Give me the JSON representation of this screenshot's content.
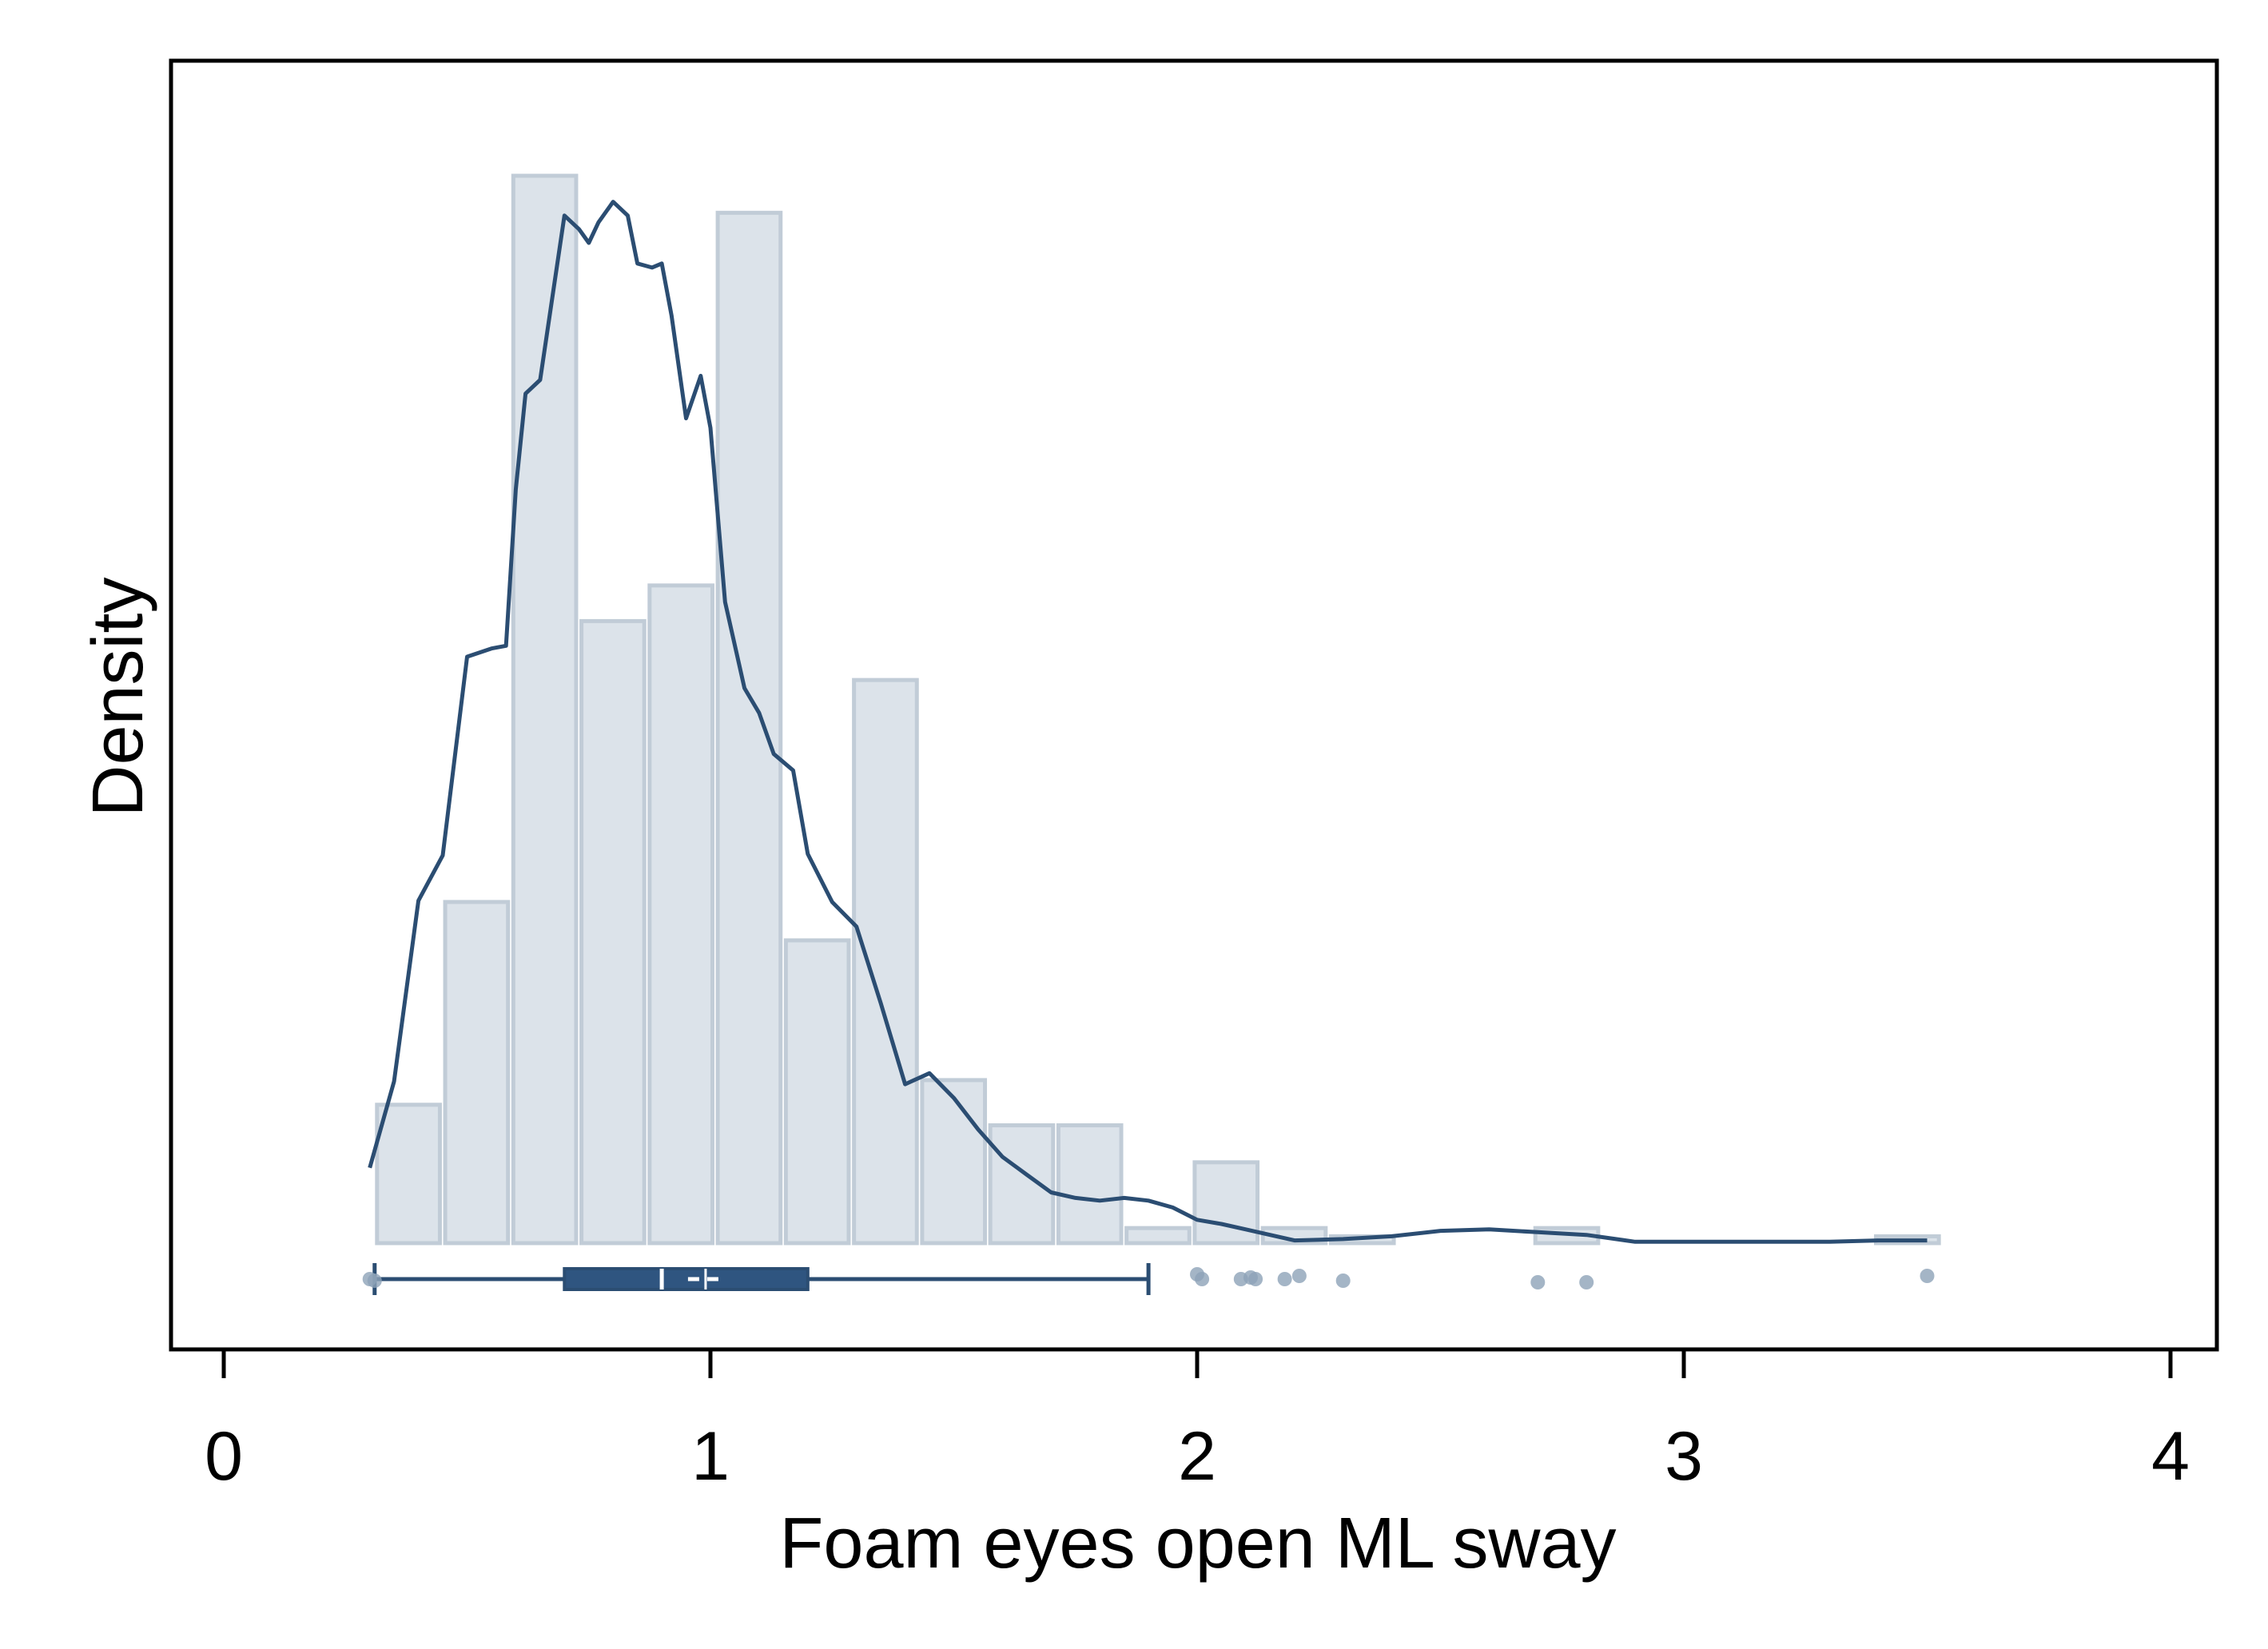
{
  "chart_data": {
    "type": "histogram",
    "title": "",
    "xlabel": "Foam eyes open ML sway",
    "ylabel": "Density",
    "xlim": [
      -0.1,
      4.1
    ],
    "xticks": [
      0,
      1,
      2,
      3,
      4
    ],
    "xtick_labels": [
      "0",
      "1",
      "2",
      "3",
      "4"
    ],
    "y_tick_labels_shown": false,
    "grid": false,
    "legend": "none",
    "bin_width": 0.139,
    "histogram": {
      "bin_starts": [
        0.31,
        0.45,
        0.59,
        0.73,
        0.87,
        1.01,
        1.15,
        1.29,
        1.43,
        1.57,
        1.71,
        1.85,
        1.99,
        2.13,
        2.27,
        2.41,
        2.55,
        2.69,
        2.83,
        2.97,
        3.11,
        3.25,
        3.39
      ],
      "heights": [
        0.101,
        0.249,
        0.779,
        0.454,
        0.48,
        0.752,
        0.221,
        0.411,
        0.119,
        0.086,
        0.086,
        0.011,
        0.059,
        0.011,
        0.005,
        0.0,
        0.0,
        0.011,
        0.0,
        0.0,
        0.0,
        0.0,
        0.005
      ]
    },
    "kde": {
      "x": [
        0.3,
        0.35,
        0.4,
        0.45,
        0.5,
        0.55,
        0.58,
        0.6,
        0.62,
        0.65,
        0.7,
        0.73,
        0.75,
        0.77,
        0.8,
        0.83,
        0.85,
        0.88,
        0.9,
        0.92,
        0.95,
        0.98,
        1.0,
        1.03,
        1.07,
        1.1,
        1.13,
        1.17,
        1.2,
        1.25,
        1.3,
        1.35,
        1.4,
        1.45,
        1.5,
        1.55,
        1.6,
        1.65,
        1.7,
        1.75,
        1.8,
        1.85,
        1.9,
        1.95,
        2.0,
        2.05,
        2.1,
        2.15,
        2.2,
        2.3,
        2.4,
        2.5,
        2.6,
        2.7,
        2.8,
        2.9,
        3.0,
        3.1,
        3.2,
        3.3,
        3.4,
        3.5
      ],
      "y": [
        0.055,
        0.118,
        0.25,
        0.283,
        0.428,
        0.434,
        0.436,
        0.55,
        0.62,
        0.63,
        0.75,
        0.74,
        0.73,
        0.745,
        0.76,
        0.75,
        0.715,
        0.712,
        0.715,
        0.677,
        0.602,
        0.633,
        0.595,
        0.468,
        0.405,
        0.387,
        0.357,
        0.345,
        0.284,
        0.249,
        0.231,
        0.175,
        0.116,
        0.124,
        0.106,
        0.083,
        0.063,
        0.05,
        0.037,
        0.033,
        0.031,
        0.033,
        0.031,
        0.026,
        0.017,
        0.014,
        0.01,
        0.006,
        0.002,
        0.003,
        0.005,
        0.009,
        0.01,
        0.008,
        0.006,
        0.001,
        0.001,
        0.001,
        0.001,
        0.001,
        0.002,
        0.002
      ]
    },
    "boxplot": {
      "whisker_low": 0.31,
      "q1": 0.7,
      "median": 0.9,
      "mean": 0.99,
      "q3": 1.2,
      "whisker_high": 1.9,
      "outliers": [
        0.3,
        0.31,
        2.0,
        2.01,
        2.09,
        2.11,
        2.12,
        2.18,
        2.21,
        2.3,
        2.7,
        2.8,
        3.5
      ]
    },
    "colors": {
      "bar_fill": "#dce3ea",
      "bar_stroke": "#c1ccd7",
      "line": "#2b4d72",
      "box_fill": "#2f5580",
      "outlier": "#8da2b8",
      "frame": "#000000"
    }
  }
}
